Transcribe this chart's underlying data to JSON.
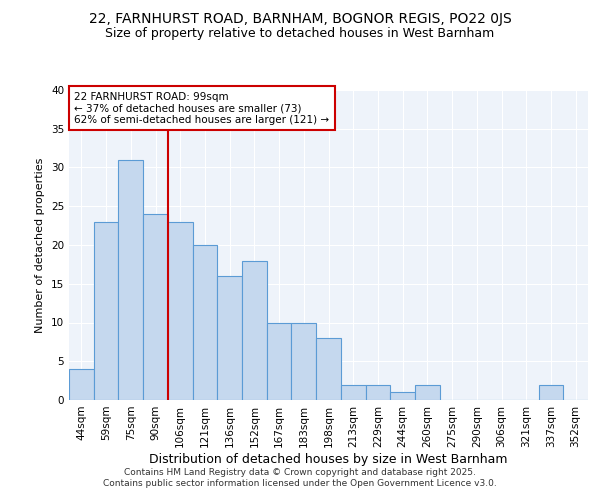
{
  "title_line1": "22, FARNHURST ROAD, BARNHAM, BOGNOR REGIS, PO22 0JS",
  "title_line2": "Size of property relative to detached houses in West Barnham",
  "xlabel": "Distribution of detached houses by size in West Barnham",
  "ylabel": "Number of detached properties",
  "categories": [
    "44sqm",
    "59sqm",
    "75sqm",
    "90sqm",
    "106sqm",
    "121sqm",
    "136sqm",
    "152sqm",
    "167sqm",
    "183sqm",
    "198sqm",
    "213sqm",
    "229sqm",
    "244sqm",
    "260sqm",
    "275sqm",
    "290sqm",
    "306sqm",
    "321sqm",
    "337sqm",
    "352sqm"
  ],
  "values": [
    4,
    23,
    31,
    24,
    23,
    20,
    16,
    18,
    10,
    10,
    8,
    2,
    2,
    1,
    2,
    0,
    0,
    0,
    0,
    2,
    0
  ],
  "bar_color": "#c5d8ee",
  "bar_edge_color": "#5b9bd5",
  "fig_bg_color": "#ffffff",
  "plot_bg_color": "#eef3fa",
  "grid_color": "#ffffff",
  "ylim": [
    0,
    40
  ],
  "yticks": [
    0,
    5,
    10,
    15,
    20,
    25,
    30,
    35,
    40
  ],
  "annotation_text": "22 FARNHURST ROAD: 99sqm\n← 37% of detached houses are smaller (73)\n62% of semi-detached houses are larger (121) →",
  "vline_index": 3,
  "annotation_box_facecolor": "#ffffff",
  "annotation_box_edgecolor": "#cc0000",
  "footer_line1": "Contains HM Land Registry data © Crown copyright and database right 2025.",
  "footer_line2": "Contains public sector information licensed under the Open Government Licence v3.0.",
  "title1_fontsize": 10,
  "title2_fontsize": 9,
  "ylabel_fontsize": 8,
  "xlabel_fontsize": 9,
  "tick_fontsize": 7.5,
  "footer_fontsize": 6.5,
  "annot_fontsize": 7.5
}
